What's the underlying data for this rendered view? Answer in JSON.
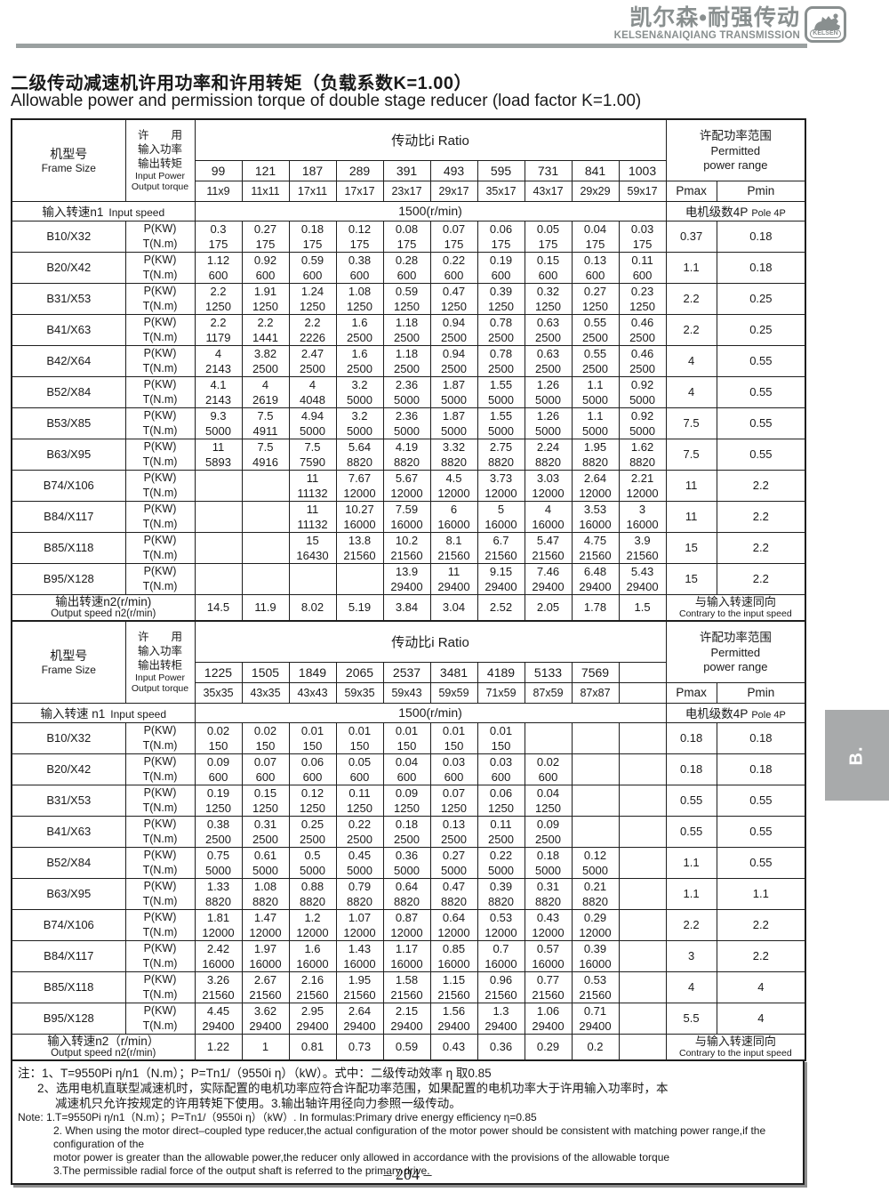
{
  "brand": {
    "cn": "凯尔森•耐强传动",
    "en": "KELSEN&NAIQIANG TRANSMISSION",
    "logo_text": "KELSEN",
    "gray": "#898f8f"
  },
  "page": {
    "title_cn": "二级传动减速机许用功率和许用转矩（负载系数K=1.00）",
    "title_en": "Allowable power and permission torque of double stage reducer (load factor K=1.00)",
    "page_number": "– 204 –",
    "side_tab": "B."
  },
  "tables": [
    {
      "frame_header_cn": "机型号",
      "frame_header_en": "Frame Size",
      "pt_header_cn": [
        "许　　用",
        "输入功率",
        "输出转矩"
      ],
      "pt_header_en": [
        "Input Power",
        "Output torque"
      ],
      "ratio_header": "传动比i Ratio",
      "ratios": [
        "99",
        "121",
        "187",
        "289",
        "391",
        "493",
        "595",
        "731",
        "841",
        "1003"
      ],
      "ratio_pairs": [
        "11x9",
        "11x11",
        "17x11",
        "17x17",
        "23x17",
        "29x17",
        "35x17",
        "43x17",
        "29x29",
        "59x17"
      ],
      "permitted_cn": "许配功率范围",
      "permitted_en": [
        "Permitted",
        "power range"
      ],
      "pmax_label": "Pmax",
      "pmin_label": "Pmin",
      "input_speed_cn": "输入转速n1",
      "input_speed_en": "Input speed",
      "input_speed_value": "1500(r/min)",
      "pole_cn": "电机级数4P",
      "pole_en": "Pole 4P",
      "p_label": "P(KW)",
      "t_label": "T(N.m)",
      "rows": [
        {
          "frame": "B10/X32",
          "p": [
            "0.3",
            "0.27",
            "0.18",
            "0.12",
            "0.08",
            "0.07",
            "0.06",
            "0.05",
            "0.04",
            "0.03"
          ],
          "t": [
            "175",
            "175",
            "175",
            "175",
            "175",
            "175",
            "175",
            "175",
            "175",
            "175"
          ],
          "pmax": "0.37",
          "pmin": "0.18"
        },
        {
          "frame": "B20/X42",
          "p": [
            "1.12",
            "0.92",
            "0.59",
            "0.38",
            "0.28",
            "0.22",
            "0.19",
            "0.15",
            "0.13",
            "0.11"
          ],
          "t": [
            "600",
            "600",
            "600",
            "600",
            "600",
            "600",
            "600",
            "600",
            "600",
            "600"
          ],
          "pmax": "1.1",
          "pmin": "0.18"
        },
        {
          "frame": "B31/X53",
          "p": [
            "2.2",
            "1.91",
            "1.24",
            "1.08",
            "0.59",
            "0.47",
            "0.39",
            "0.32",
            "0.27",
            "0.23"
          ],
          "t": [
            "1250",
            "1250",
            "1250",
            "1250",
            "1250",
            "1250",
            "1250",
            "1250",
            "1250",
            "1250"
          ],
          "pmax": "2.2",
          "pmin": "0.25"
        },
        {
          "frame": "B41/X63",
          "p": [
            "2.2",
            "2.2",
            "2.2",
            "1.6",
            "1.18",
            "0.94",
            "0.78",
            "0.63",
            "0.55",
            "0.46"
          ],
          "t": [
            "1179",
            "1441",
            "2226",
            "2500",
            "2500",
            "2500",
            "2500",
            "2500",
            "2500",
            "2500"
          ],
          "pmax": "2.2",
          "pmin": "0.25"
        },
        {
          "frame": "B42/X64",
          "p": [
            "4",
            "3.82",
            "2.47",
            "1.6",
            "1.18",
            "0.94",
            "0.78",
            "0.63",
            "0.55",
            "0.46"
          ],
          "t": [
            "2143",
            "2500",
            "2500",
            "2500",
            "2500",
            "2500",
            "2500",
            "2500",
            "2500",
            "2500"
          ],
          "pmax": "4",
          "pmin": "0.55"
        },
        {
          "frame": "B52/X84",
          "p": [
            "4.1",
            "4",
            "4",
            "3.2",
            "2.36",
            "1.87",
            "1.55",
            "1.26",
            "1.1",
            "0.92"
          ],
          "t": [
            "2143",
            "2619",
            "4048",
            "5000",
            "5000",
            "5000",
            "5000",
            "5000",
            "5000",
            "5000"
          ],
          "pmax": "4",
          "pmin": "0.55"
        },
        {
          "frame": "B53/X85",
          "p": [
            "9.3",
            "7.5",
            "4.94",
            "3.2",
            "2.36",
            "1.87",
            "1.55",
            "1.26",
            "1.1",
            "0.92"
          ],
          "t": [
            "5000",
            "4911",
            "5000",
            "5000",
            "5000",
            "5000",
            "5000",
            "5000",
            "5000",
            "5000"
          ],
          "pmax": "7.5",
          "pmin": "0.55"
        },
        {
          "frame": "B63/X95",
          "p": [
            "11",
            "7.5",
            "7.5",
            "5.64",
            "4.19",
            "3.32",
            "2.75",
            "2.24",
            "1.95",
            "1.62"
          ],
          "t": [
            "5893",
            "4916",
            "7590",
            "8820",
            "8820",
            "8820",
            "8820",
            "8820",
            "8820",
            "8820"
          ],
          "pmax": "7.5",
          "pmin": "0.55"
        },
        {
          "frame": "B74/X106",
          "p": [
            "",
            "",
            "11",
            "7.67",
            "5.67",
            "4.5",
            "3.73",
            "3.03",
            "2.64",
            "2.21"
          ],
          "t": [
            "",
            "",
            "11132",
            "12000",
            "12000",
            "12000",
            "12000",
            "12000",
            "12000",
            "12000"
          ],
          "pmax": "11",
          "pmin": "2.2"
        },
        {
          "frame": "B84/X117",
          "p": [
            "",
            "",
            "11",
            "10.27",
            "7.59",
            "6",
            "5",
            "4",
            "3.53",
            "3"
          ],
          "t": [
            "",
            "",
            "11132",
            "16000",
            "16000",
            "16000",
            "16000",
            "16000",
            "16000",
            "16000"
          ],
          "pmax": "11",
          "pmin": "2.2"
        },
        {
          "frame": "B85/X118",
          "p": [
            "",
            "",
            "15",
            "13.8",
            "10.2",
            "8.1",
            "6.7",
            "5.47",
            "4.75",
            "3.9"
          ],
          "t": [
            "",
            "",
            "16430",
            "21560",
            "21560",
            "21560",
            "21560",
            "21560",
            "21560",
            "21560"
          ],
          "pmax": "15",
          "pmin": "2.2"
        },
        {
          "frame": "B95/X128",
          "p": [
            "",
            "",
            "",
            "",
            "13.9",
            "11",
            "9.15",
            "7.46",
            "6.48",
            "5.43"
          ],
          "t": [
            "",
            "",
            "",
            "",
            "29400",
            "29400",
            "29400",
            "29400",
            "29400",
            "29400"
          ],
          "pmax": "15",
          "pmin": "2.2"
        }
      ],
      "output_speed_cn": "输出转速n2(r/min)",
      "output_speed_en": "Output speed n2(r/min)",
      "output_speeds": [
        "14.5",
        "11.9",
        "8.02",
        "5.19",
        "3.84",
        "3.04",
        "2.52",
        "2.05",
        "1.78",
        "1.5"
      ],
      "direction_cn": "与输入转速同向",
      "direction_en": "Contrary to the input speed"
    },
    {
      "frame_header_cn": "机型号",
      "frame_header_en": "Frame Size",
      "pt_header_cn": [
        "许　　用",
        "输入功率",
        "输出转柜"
      ],
      "pt_header_en": [
        "Input Power",
        "Output torque"
      ],
      "ratio_header": "传动比i Ratio",
      "ratios": [
        "1225",
        "1505",
        "1849",
        "2065",
        "2537",
        "3481",
        "4189",
        "5133",
        "7569",
        ""
      ],
      "ratio_pairs": [
        "35x35",
        "43x35",
        "43x43",
        "59x35",
        "59x43",
        "59x59",
        "71x59",
        "87x59",
        "87x87",
        ""
      ],
      "permitted_cn": "许配功率范围",
      "permitted_en": [
        "Permitted",
        "power range"
      ],
      "pmax_label": "Pmax",
      "pmin_label": "Pmin",
      "input_speed_cn": "输入转速 n1",
      "input_speed_en": "Input speed",
      "input_speed_value": "1500(r/min)",
      "pole_cn": "电机级数4P",
      "pole_en": "Pole 4P",
      "p_label": "P(KW)",
      "t_label": "T(N.m)",
      "rows": [
        {
          "frame": "B10/X32",
          "p": [
            "0.02",
            "0.02",
            "0.01",
            "0.01",
            "0.01",
            "0.01",
            "0.01",
            "",
            "",
            ""
          ],
          "t": [
            "150",
            "150",
            "150",
            "150",
            "150",
            "150",
            "150",
            "",
            "",
            ""
          ],
          "pmax": "0.18",
          "pmin": "0.18"
        },
        {
          "frame": "B20/X42",
          "p": [
            "0.09",
            "0.07",
            "0.06",
            "0.05",
            "0.04",
            "0.03",
            "0.03",
            "0.02",
            "",
            ""
          ],
          "t": [
            "600",
            "600",
            "600",
            "600",
            "600",
            "600",
            "600",
            "600",
            "",
            ""
          ],
          "pmax": "0.18",
          "pmin": "0.18"
        },
        {
          "frame": "B31/X53",
          "p": [
            "0.19",
            "0.15",
            "0.12",
            "0.11",
            "0.09",
            "0.07",
            "0.06",
            "0.04",
            "",
            ""
          ],
          "t": [
            "1250",
            "1250",
            "1250",
            "1250",
            "1250",
            "1250",
            "1250",
            "1250",
            "",
            ""
          ],
          "pmax": "0.55",
          "pmin": "0.55"
        },
        {
          "frame": "B41/X63",
          "p": [
            "0.38",
            "0.31",
            "0.25",
            "0.22",
            "0.18",
            "0.13",
            "0.11",
            "0.09",
            "",
            ""
          ],
          "t": [
            "2500",
            "2500",
            "2500",
            "2500",
            "2500",
            "2500",
            "2500",
            "2500",
            "",
            ""
          ],
          "pmax": "0.55",
          "pmin": "0.55"
        },
        {
          "frame": "B52/X84",
          "p": [
            "0.75",
            "0.61",
            "0.5",
            "0.45",
            "0.36",
            "0.27",
            "0.22",
            "0.18",
            "0.12",
            ""
          ],
          "t": [
            "5000",
            "5000",
            "5000",
            "5000",
            "5000",
            "5000",
            "5000",
            "5000",
            "5000",
            ""
          ],
          "pmax": "1.1",
          "pmin": "0.55"
        },
        {
          "frame": "B63/X95",
          "p": [
            "1.33",
            "1.08",
            "0.88",
            "0.79",
            "0.64",
            "0.47",
            "0.39",
            "0.31",
            "0.21",
            ""
          ],
          "t": [
            "8820",
            "8820",
            "8820",
            "8820",
            "8820",
            "8820",
            "8820",
            "8820",
            "8820",
            ""
          ],
          "pmax": "1.1",
          "pmin": "1.1"
        },
        {
          "frame": "B74/X106",
          "p": [
            "1.81",
            "1.47",
            "1.2",
            "1.07",
            "0.87",
            "0.64",
            "0.53",
            "0.43",
            "0.29",
            ""
          ],
          "t": [
            "12000",
            "12000",
            "12000",
            "12000",
            "12000",
            "12000",
            "12000",
            "12000",
            "12000",
            ""
          ],
          "pmax": "2.2",
          "pmin": "2.2"
        },
        {
          "frame": "B84/X117",
          "p": [
            "2.42",
            "1.97",
            "1.6",
            "1.43",
            "1.17",
            "0.85",
            "0.7",
            "0.57",
            "0.39",
            ""
          ],
          "t": [
            "16000",
            "16000",
            "16000",
            "16000",
            "16000",
            "16000",
            "16000",
            "16000",
            "16000",
            ""
          ],
          "pmax": "3",
          "pmin": "2.2"
        },
        {
          "frame": "B85/X118",
          "p": [
            "3.26",
            "2.67",
            "2.16",
            "1.95",
            "1.58",
            "1.15",
            "0.96",
            "0.77",
            "0.53",
            ""
          ],
          "t": [
            "21560",
            "21560",
            "21560",
            "21560",
            "21560",
            "21560",
            "21560",
            "21560",
            "21560",
            ""
          ],
          "pmax": "4",
          "pmin": "4"
        },
        {
          "frame": "B95/X128",
          "p": [
            "4.45",
            "3.62",
            "2.95",
            "2.64",
            "2.15",
            "1.56",
            "1.3",
            "1.06",
            "0.71",
            ""
          ],
          "t": [
            "29400",
            "29400",
            "29400",
            "29400",
            "29400",
            "29400",
            "29400",
            "29400",
            "29400",
            ""
          ],
          "pmax": "5.5",
          "pmin": "4"
        }
      ],
      "output_speed_cn": "输入转速n2（r/min）",
      "output_speed_en": "Output speed n2(r/min)",
      "output_speeds": [
        "1.22",
        "1",
        "0.81",
        "0.73",
        "0.59",
        "0.43",
        "0.36",
        "0.29",
        "0.2",
        ""
      ],
      "direction_cn": "与输入转速同向",
      "direction_en": "Contrary to the input speed"
    }
  ],
  "notes": {
    "cn": [
      "注：1、T=9550Pi η/n1（N.m）；P=Tn1/（9550i η）（kW）。式中：二级传动效率 η 取0.85",
      "2、选用电机直联型减速机时，实际配置的电机功率应符合许配功率范围，如果配置的电机功率大于许用输入功率时，本",
      "减速机只允许按规定的许用转矩下使用。3.输出轴许用径向力参照一级传动。"
    ],
    "en": [
      "Note: 1.T=9550Pi η/n1（N.m）；P=Tn1/（9550i η）（kW）. In formulas:Primary drive energy efficiency η=0.85",
      "2. When using the motor direct–coupled type reducer,the actual configuration of the motor power should be consistent with matching power range,if the configuration of the",
      "motor power is greater than the allowable power,the reducer only allowed in accordance with the provisions of the allowable torque",
      "3.The permissible radial force of the output shaft is referred to the primary drive."
    ]
  }
}
